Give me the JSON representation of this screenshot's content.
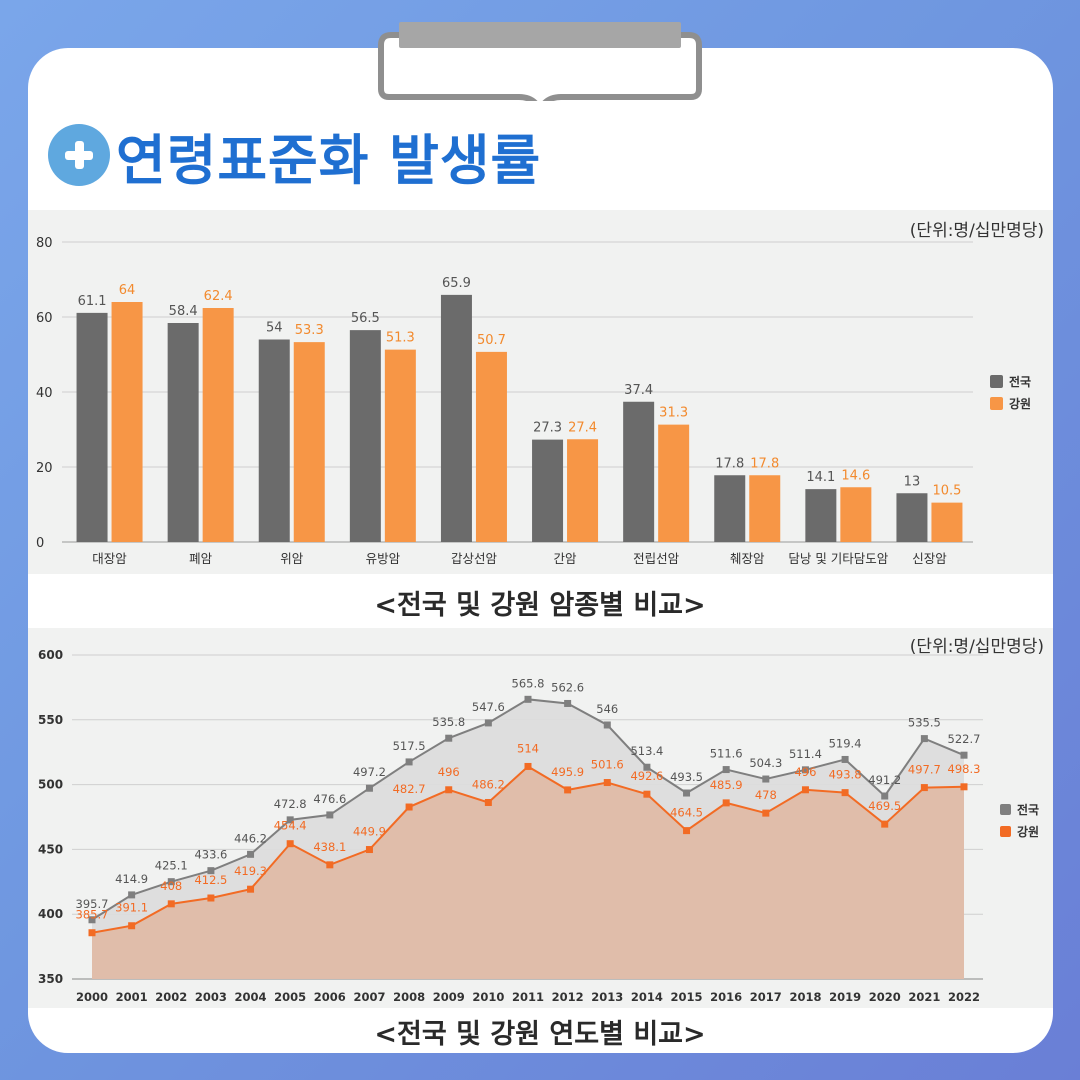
{
  "page": {
    "title": "연령표준화 발생률",
    "colors": {
      "background": "#7aa6ea",
      "title": "#1f6fd1",
      "icon": "#5fa8df"
    }
  },
  "chart_data": [
    {
      "type": "bar",
      "caption": "<전국 및 강원 암종별 비교>",
      "unit": "(단위:명/십만명당)",
      "categories": [
        "대장암",
        "폐암",
        "위암",
        "유방암",
        "갑상선암",
        "간암",
        "전립선암",
        "췌장암",
        "담낭 및 기타담도암",
        "신장암"
      ],
      "series": [
        {
          "name": "전국",
          "color": "#6b6b6b",
          "values": [
            61.1,
            58.4,
            54,
            56.5,
            65.9,
            27.3,
            37.4,
            17.8,
            14.1,
            13
          ]
        },
        {
          "name": "강원",
          "color": "#f79646",
          "values": [
            64,
            62.4,
            53.3,
            51.3,
            50.7,
            27.4,
            31.3,
            17.8,
            14.6,
            10.5
          ]
        }
      ],
      "ylim": [
        0,
        80
      ],
      "yticks": [
        0,
        20,
        40,
        60,
        80
      ],
      "grid": true,
      "legend": "right"
    },
    {
      "type": "area",
      "caption": "<전국 및 강원 연도별 비교>",
      "unit": "(단위:명/십만명당)",
      "x": [
        "2000",
        "2001",
        "2002",
        "2003",
        "2004",
        "2005",
        "2006",
        "2007",
        "2008",
        "2009",
        "2010",
        "2011",
        "2012",
        "2013",
        "2014",
        "2015",
        "2016",
        "2017",
        "2018",
        "2019",
        "2020",
        "2021",
        "2022"
      ],
      "series": [
        {
          "name": "전국",
          "color": "#7f7f7f",
          "values": [
            395.7,
            414.9,
            425.1,
            433.6,
            446.2,
            472.8,
            476.6,
            497.2,
            517.5,
            535.8,
            547.6,
            565.8,
            562.6,
            546,
            513.4,
            493.5,
            511.6,
            504.3,
            511.4,
            519.4,
            491.2,
            535.5,
            522.7
          ]
        },
        {
          "name": "강원",
          "color": "#f26b24",
          "values": [
            385.7,
            391.1,
            408,
            412.5,
            419.3,
            454.4,
            438.1,
            449.9,
            482.7,
            496,
            486.2,
            514,
            495.9,
            501.6,
            492.6,
            464.5,
            485.9,
            478,
            496,
            493.8,
            469.5,
            497.7,
            498.3
          ]
        }
      ],
      "ylim": [
        350,
        600
      ],
      "yticks": [
        350,
        400,
        450,
        500,
        550,
        600
      ],
      "grid": true,
      "legend": "right"
    }
  ]
}
